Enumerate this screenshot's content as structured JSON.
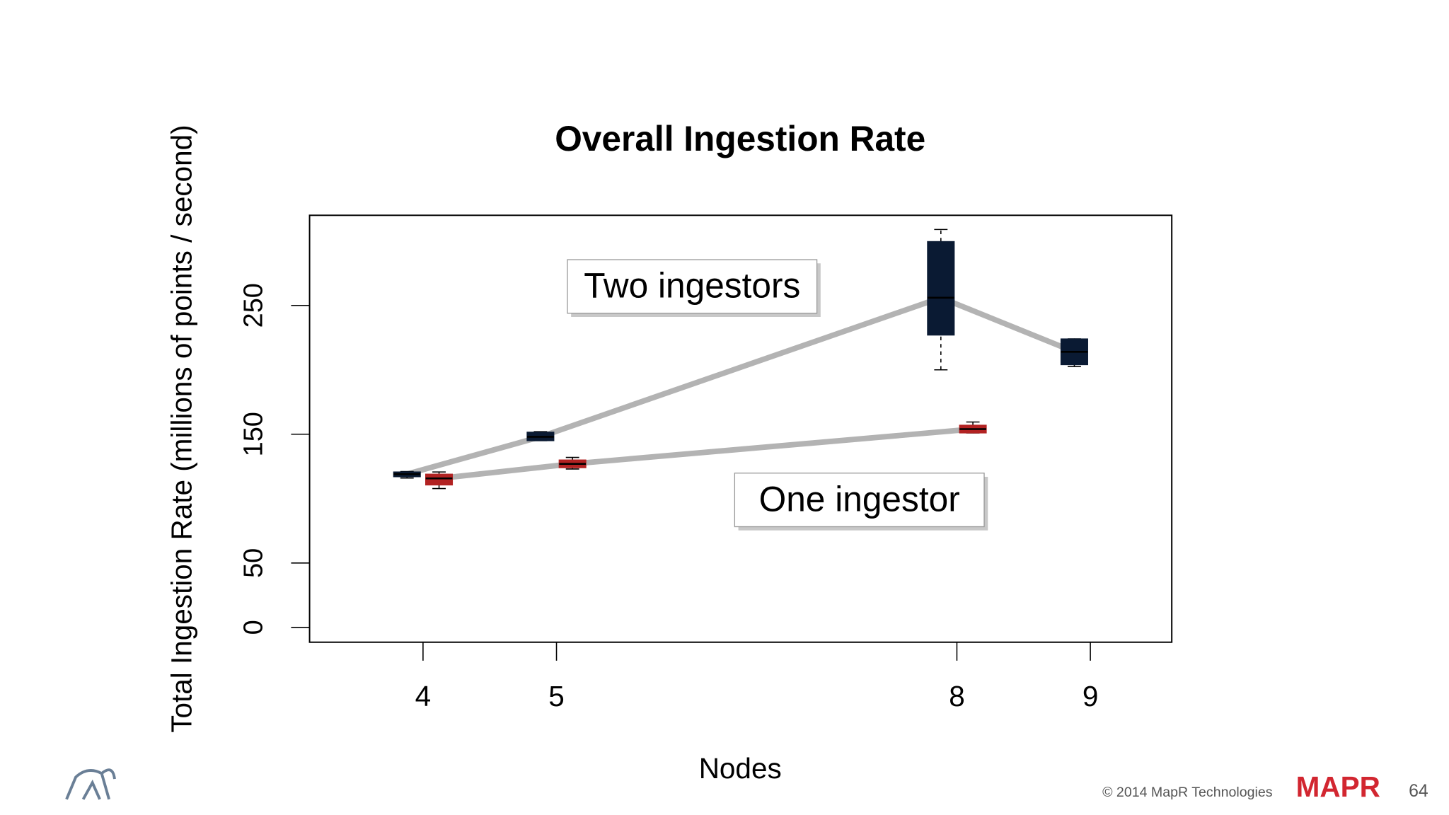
{
  "chart_data": {
    "type": "box",
    "title": "Overall Ingestion Rate",
    "xlabel": "Nodes",
    "ylabel": "Total Ingestion Rate (millions of points / second)",
    "xlim": [
      3.15,
      9.61
    ],
    "xticks": [
      4,
      5,
      8,
      9
    ],
    "ylim": [
      -11.5,
      320
    ],
    "yticks": [
      0,
      50,
      150,
      250
    ],
    "series": [
      {
        "name": "Two ingestors",
        "color": "#0a1a33",
        "x": [
          4,
          5,
          8,
          9
        ],
        "min": [
          116,
          145,
          200,
          202.6
        ],
        "q1": [
          117,
          145,
          227,
          204
        ],
        "median": [
          119,
          148,
          256,
          214
        ],
        "q3": [
          120.7,
          151.6,
          299.6,
          224
        ],
        "max": [
          121,
          152,
          309,
          224
        ]
      },
      {
        "name": "One ingestor",
        "color": "#b22222",
        "x": [
          4,
          5,
          8
        ],
        "min": [
          107.8,
          123,
          151
        ],
        "q1": [
          110.6,
          124,
          151
        ],
        "median": [
          115.7,
          127,
          154
        ],
        "q3": [
          119,
          130,
          157
        ],
        "max": [
          120.7,
          132,
          159.5
        ]
      }
    ]
  },
  "footer": {
    "copyright": "© 2014 MapR Technologies",
    "logo": "MAPR",
    "page": "64"
  }
}
